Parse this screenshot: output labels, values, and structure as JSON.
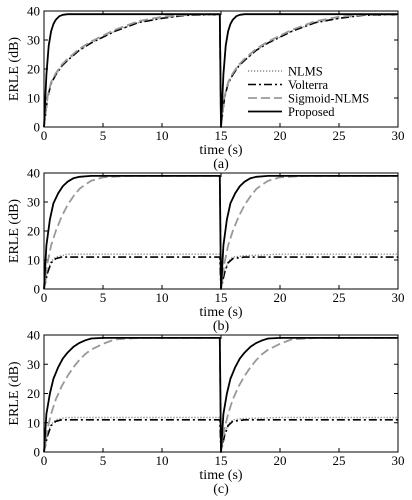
{
  "chart_data": [
    {
      "type": "line",
      "panel_label": "(a)",
      "xlabel": "time (s)",
      "ylabel": "ERLE (dB)",
      "xlim": [
        0,
        30
      ],
      "ylim": [
        0,
        40
      ],
      "xticks": [
        0,
        5,
        10,
        15,
        20,
        25,
        30
      ],
      "yticks": [
        0,
        10,
        20,
        30,
        40
      ],
      "legend": {
        "placement": "bottom-right",
        "entries": [
          "NLMS",
          "Volterra",
          "Sigmoid-NLMS",
          "Proposed"
        ]
      },
      "series": [
        {
          "name": "NLMS",
          "style": "dotted",
          "color": "#888888",
          "x": [
            0,
            0.3,
            0.6,
            1,
            1.5,
            2,
            3,
            4,
            5,
            6,
            8,
            10,
            12,
            14.9,
            15.0,
            15.3,
            15.6,
            16,
            16.5,
            17,
            18,
            19,
            20,
            21,
            23,
            25,
            27,
            30
          ],
          "y": [
            0,
            10,
            15,
            18,
            21,
            23,
            26.5,
            29,
            31,
            33,
            36,
            37.5,
            38.5,
            38.8,
            0,
            10,
            15,
            18,
            21,
            23,
            26.5,
            29,
            31,
            33,
            36,
            37.5,
            38.5,
            38.8
          ]
        },
        {
          "name": "Volterra",
          "style": "dashdot",
          "color": "#000000",
          "x": [
            0,
            0.3,
            0.6,
            1,
            1.5,
            2,
            3,
            4,
            5,
            6,
            8,
            10,
            12,
            14.9,
            15.0,
            15.3,
            15.6,
            16,
            16.5,
            17,
            18,
            19,
            20,
            21,
            23,
            25,
            27,
            30
          ],
          "y": [
            0,
            10,
            15,
            18,
            21,
            23,
            26.5,
            29,
            31,
            33,
            36,
            37.5,
            38.5,
            38.8,
            0,
            10,
            15,
            18,
            21,
            23,
            26.5,
            29,
            31,
            33,
            36,
            37.5,
            38.5,
            38.8
          ]
        },
        {
          "name": "Sigmoid-NLMS",
          "style": "dashed",
          "color": "#999999",
          "x": [
            0,
            0.3,
            0.6,
            1,
            1.5,
            2,
            3,
            4,
            5,
            6,
            8,
            10,
            12,
            14.9,
            15.0,
            15.3,
            15.6,
            16,
            16.5,
            17,
            18,
            19,
            20,
            21,
            23,
            25,
            27,
            30
          ],
          "y": [
            0,
            10.5,
            15.5,
            18.5,
            21.5,
            23.5,
            27,
            29.5,
            31.5,
            33.5,
            36.5,
            38,
            38.7,
            38.8,
            0,
            10.5,
            15.5,
            18.5,
            21.5,
            23.5,
            27,
            29.5,
            31.5,
            33.5,
            36.5,
            38,
            38.7,
            38.8
          ]
        },
        {
          "name": "Proposed",
          "style": "solid",
          "color": "#000000",
          "x": [
            0,
            0.2,
            0.4,
            0.6,
            0.8,
            1,
            1.3,
            1.6,
            2,
            3,
            5,
            10,
            14.9,
            15.0,
            15.2,
            15.4,
            15.6,
            15.8,
            16,
            16.3,
            16.6,
            17,
            18,
            20,
            25,
            30
          ],
          "y": [
            0,
            18,
            28,
            33,
            35.5,
            37,
            38.2,
            38.7,
            38.9,
            38.9,
            38.9,
            38.9,
            38.9,
            0,
            18,
            28,
            33,
            35.5,
            37,
            38.2,
            38.7,
            38.9,
            38.9,
            38.9,
            38.9,
            38.9
          ]
        }
      ]
    },
    {
      "type": "line",
      "panel_label": "(b)",
      "xlabel": "time (s)",
      "ylabel": "ERLE (dB)",
      "xlim": [
        0,
        30
      ],
      "ylim": [
        0,
        40
      ],
      "xticks": [
        0,
        5,
        10,
        15,
        20,
        25,
        30
      ],
      "yticks": [
        0,
        10,
        20,
        30,
        40
      ],
      "series": [
        {
          "name": "NLMS",
          "style": "dotted",
          "color": "#888888",
          "x": [
            0,
            0.3,
            0.6,
            1,
            1.5,
            2,
            3,
            5,
            8,
            10,
            12,
            14.9,
            15.0,
            15.3,
            15.6,
            16,
            17,
            20,
            25,
            30
          ],
          "y": [
            0,
            6,
            9.5,
            11,
            11.5,
            12,
            12,
            12,
            12,
            12,
            12,
            12,
            0,
            6,
            9.5,
            11,
            11.5,
            12,
            12,
            12
          ]
        },
        {
          "name": "Volterra",
          "style": "dashdot",
          "color": "#000000",
          "x": [
            0,
            0.3,
            0.6,
            1,
            1.5,
            2,
            3,
            5,
            8,
            10,
            12,
            14.9,
            15.0,
            15.3,
            15.6,
            16,
            17,
            20,
            25,
            30
          ],
          "y": [
            0,
            5.5,
            9,
            10.5,
            11,
            11,
            11,
            11,
            11,
            11,
            11,
            11,
            0,
            5.5,
            9,
            10.5,
            11,
            11,
            11,
            11
          ]
        },
        {
          "name": "Sigmoid-NLMS",
          "style": "dashed",
          "color": "#999999",
          "x": [
            0,
            0.3,
            0.6,
            1,
            1.5,
            2,
            2.5,
            3,
            3.5,
            4,
            5,
            7,
            10,
            14.9,
            15.0,
            15.3,
            15.6,
            16,
            16.5,
            17,
            17.5,
            18,
            18.5,
            19,
            20,
            22,
            25,
            30
          ],
          "y": [
            0,
            9,
            15,
            20,
            25,
            29,
            32,
            34.5,
            36,
            37.3,
            38.5,
            39,
            39,
            39,
            0,
            9,
            15,
            20,
            25,
            29,
            32,
            34.5,
            36,
            37.3,
            38.5,
            39,
            39,
            39
          ]
        },
        {
          "name": "Proposed",
          "style": "solid",
          "color": "#000000",
          "x": [
            0,
            0.2,
            0.5,
            0.8,
            1.2,
            1.6,
            2,
            2.5,
            3,
            4,
            6,
            10,
            14.9,
            15.0,
            15.2,
            15.5,
            15.8,
            16.2,
            16.6,
            17,
            17.5,
            18,
            19,
            21,
            25,
            30
          ],
          "y": [
            0,
            15,
            24,
            29.5,
            33,
            35.5,
            37,
            38.2,
            38.7,
            39,
            39,
            39,
            39,
            0,
            15,
            24,
            29.5,
            33,
            35.5,
            37,
            38.2,
            38.7,
            39,
            39,
            39,
            39
          ]
        }
      ]
    },
    {
      "type": "line",
      "panel_label": "(c)",
      "xlabel": "time (s)",
      "ylabel": "ERLE (dB)",
      "xlim": [
        0,
        30
      ],
      "ylim": [
        0,
        40
      ],
      "xticks": [
        0,
        5,
        10,
        15,
        20,
        25,
        30
      ],
      "yticks": [
        0,
        10,
        20,
        30,
        40
      ],
      "series": [
        {
          "name": "NLMS",
          "style": "dotted",
          "color": "#888888",
          "x": [
            0,
            0.3,
            0.6,
            1,
            1.5,
            2,
            3,
            5,
            8,
            10,
            12,
            14.9,
            15.0,
            15.3,
            15.6,
            16,
            17,
            20,
            25,
            30
          ],
          "y": [
            0,
            6,
            9.5,
            11,
            11.5,
            11.8,
            11.8,
            11.8,
            11.8,
            11.8,
            11.8,
            11.8,
            0,
            6,
            9.5,
            11,
            11.5,
            11.8,
            11.8,
            11.8
          ]
        },
        {
          "name": "Volterra",
          "style": "dashdot",
          "color": "#000000",
          "x": [
            0,
            0.3,
            0.6,
            1,
            1.5,
            2,
            3,
            5,
            8,
            10,
            12,
            14.9,
            15.0,
            15.3,
            15.6,
            16,
            17,
            20,
            25,
            30
          ],
          "y": [
            0,
            5.5,
            9,
            10.5,
            11,
            11,
            11,
            11,
            11,
            11,
            11,
            11,
            0,
            5.5,
            9,
            10.5,
            11,
            11,
            11,
            11
          ]
        },
        {
          "name": "Sigmoid-NLMS",
          "style": "dashed",
          "color": "#999999",
          "x": [
            0,
            0.3,
            0.6,
            1,
            1.5,
            2,
            2.5,
            3,
            3.5,
            4,
            5,
            6,
            8,
            10,
            14.9,
            15.0,
            15.3,
            15.6,
            16,
            16.5,
            17,
            17.5,
            18,
            18.5,
            19,
            20,
            21,
            23,
            25,
            30
          ],
          "y": [
            0,
            8,
            13,
            18,
            22.5,
            26,
            29,
            31.5,
            33.5,
            35,
            37,
            38.5,
            39,
            39,
            39,
            0,
            8,
            13,
            18,
            22.5,
            26,
            29,
            31.5,
            33.5,
            35,
            37,
            38.5,
            39,
            39,
            39
          ]
        },
        {
          "name": "Proposed",
          "style": "solid",
          "color": "#000000",
          "x": [
            0,
            0.2,
            0.5,
            0.8,
            1.2,
            1.6,
            2,
            2.5,
            3,
            3.5,
            4,
            5,
            8,
            14.9,
            15.0,
            15.2,
            15.5,
            15.8,
            16.2,
            16.6,
            17,
            17.5,
            18,
            18.5,
            19,
            20,
            23,
            30
          ],
          "y": [
            0,
            13,
            20,
            25,
            29,
            32,
            34,
            36,
            37.3,
            38.2,
            38.8,
            39,
            39,
            39,
            0,
            13,
            20,
            25,
            29,
            32,
            34,
            36,
            37.3,
            38.2,
            38.8,
            39,
            39,
            39
          ]
        }
      ]
    }
  ]
}
